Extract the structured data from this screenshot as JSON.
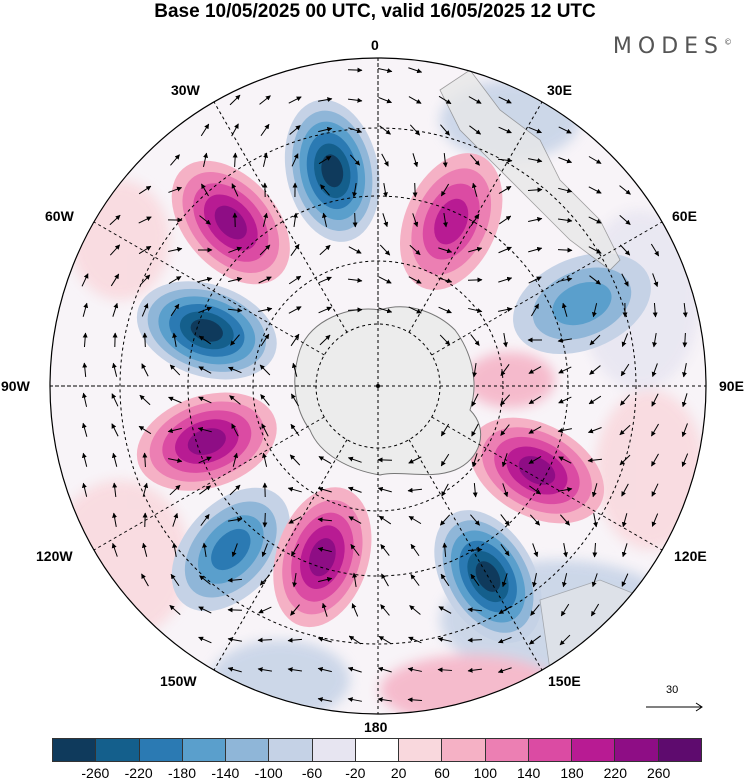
{
  "title": "Base 10/05/2025 00 UTC, valid 16/05/2025 12 UTC",
  "brand": "MODES",
  "brand_mark": "©",
  "longitude_labels": {
    "l0": "0",
    "l30e": "30E",
    "l60e": "60E",
    "l90e": "90E",
    "l120e": "120E",
    "l150e": "150E",
    "l180": "180",
    "l150w": "150W",
    "l120w": "120W",
    "l90w": "90W",
    "l60w": "60W",
    "l30w": "30W"
  },
  "reference_vector": "30",
  "legend": {
    "colors": [
      "#0f3a5c",
      "#145f8c",
      "#2b7ab3",
      "#5a9fcc",
      "#8fb6d8",
      "#c5d2e6",
      "#e7e5f1",
      "#ffffff",
      "#f9d8dd",
      "#f5b1c5",
      "#ec7fb3",
      "#db4ba3",
      "#b81b93",
      "#8e0d85",
      "#5e0b6e"
    ],
    "ticks": [
      "-260",
      "-220",
      "-180",
      "-140",
      "-100",
      "-60",
      "-20",
      "20",
      "60",
      "100",
      "140",
      "180",
      "220",
      "260"
    ]
  },
  "anomaly_centers": [
    {
      "sign": "negative",
      "lon": -12,
      "magnitude": 260
    },
    {
      "sign": "positive",
      "lon": 24,
      "magnitude": 200
    },
    {
      "sign": "positive",
      "lon": -42,
      "magnitude": 240
    },
    {
      "sign": "negative",
      "lon": -72,
      "magnitude": 260
    },
    {
      "sign": "negative",
      "lon": 68,
      "magnitude": 140
    },
    {
      "sign": "positive",
      "lon": -108,
      "magnitude": 220
    },
    {
      "sign": "negative",
      "lon": -138,
      "magnitude": 180
    },
    {
      "sign": "positive",
      "lon": -162,
      "magnitude": 240
    },
    {
      "sign": "negative",
      "lon": 150,
      "magnitude": 260
    },
    {
      "sign": "positive",
      "lon": 118,
      "magnitude": 220
    }
  ]
}
